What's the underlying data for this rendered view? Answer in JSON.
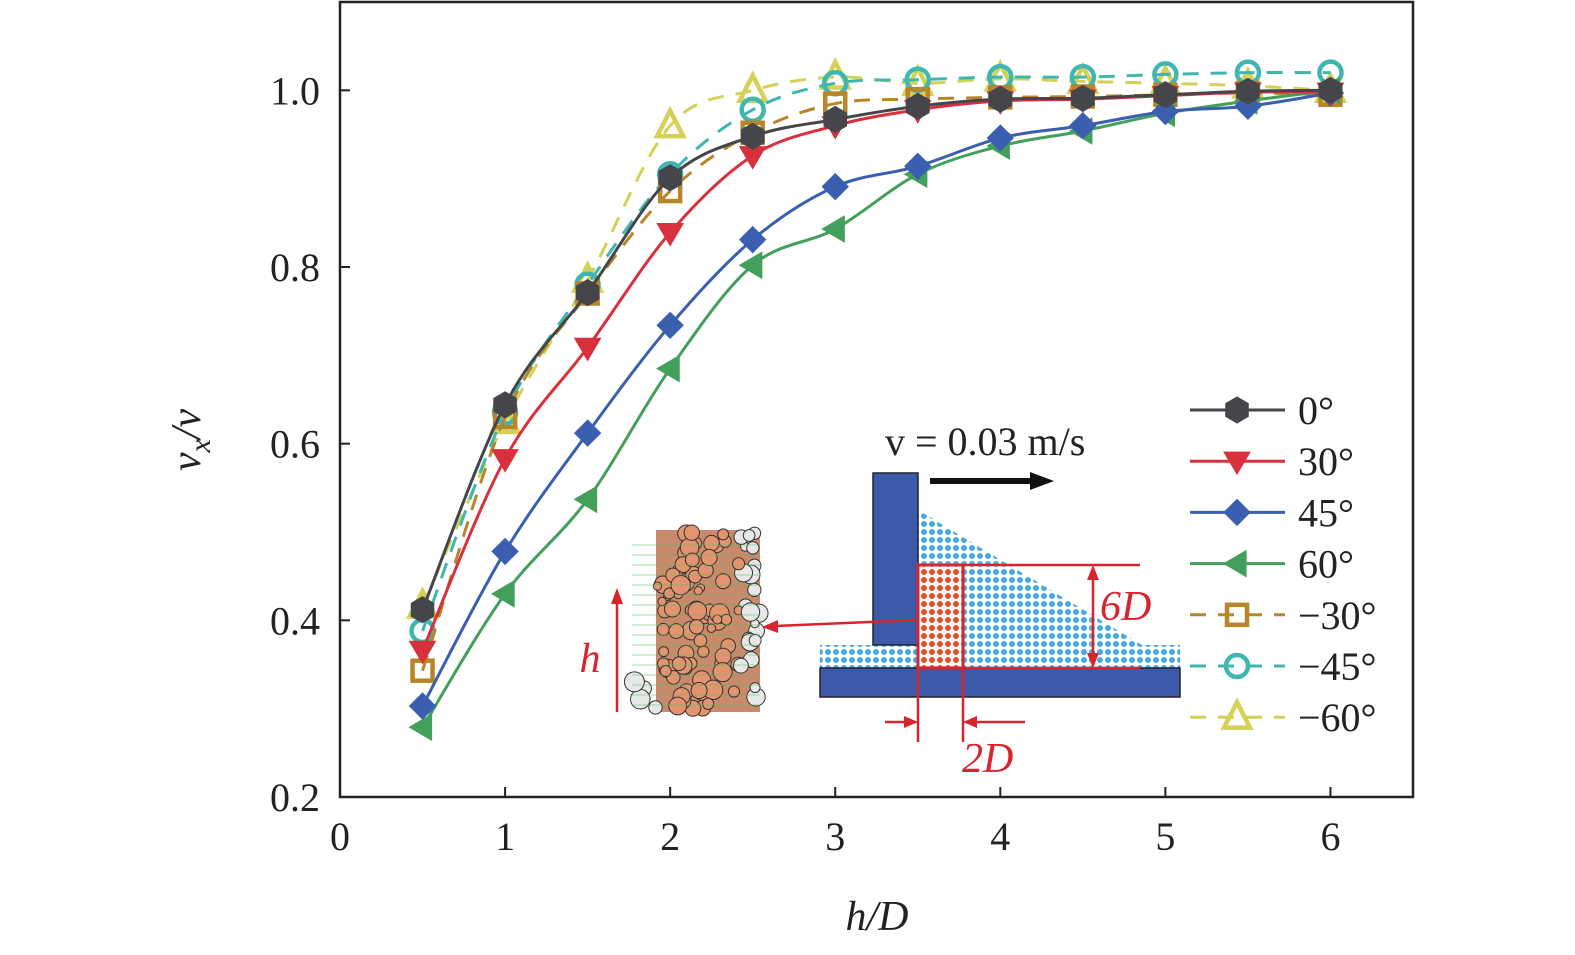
{
  "chart_data": {
    "type": "line",
    "xlabel": "h/D",
    "ylabel": "v_x/v",
    "ylabel_main": "v",
    "ylabel_sub": "x",
    "ylabel_tail": "/v",
    "xlim": [
      0,
      6.5
    ],
    "ylim": [
      0.2,
      1.1
    ],
    "xticks": [
      0,
      1,
      2,
      3,
      4,
      5,
      6
    ],
    "xtick_labels": [
      "0",
      "1",
      "2",
      "3",
      "4",
      "5",
      "6"
    ],
    "yticks": [
      0.2,
      0.4,
      0.6,
      0.8,
      1.0
    ],
    "ytick_labels": [
      "0.2",
      "0.4",
      "0.6",
      "0.8",
      "1.0"
    ],
    "grid": false,
    "legend_position": "right",
    "x": [
      0.5,
      1,
      1.5,
      2,
      2.5,
      3,
      3.5,
      4,
      4.5,
      5,
      5.5,
      6
    ],
    "series": [
      {
        "name": "0°",
        "color": "#45464b",
        "marker": "hexagon",
        "dashed": false,
        "values": [
          0.412,
          0.644,
          0.771,
          0.901,
          0.948,
          0.967,
          0.982,
          0.99,
          0.991,
          0.995,
          0.999,
          1.0
        ]
      },
      {
        "name": "30°",
        "color": "#d8303c",
        "marker": "triangle-down",
        "dashed": false,
        "values": [
          0.366,
          0.583,
          0.709,
          0.839,
          0.926,
          0.96,
          0.978,
          0.988,
          0.99,
          0.994,
          0.998,
          0.998
        ]
      },
      {
        "name": "45°",
        "color": "#3b5fb0",
        "marker": "diamond",
        "dashed": false,
        "values": [
          0.303,
          0.478,
          0.612,
          0.734,
          0.831,
          0.891,
          0.914,
          0.946,
          0.96,
          0.976,
          0.982,
          0.997
        ]
      },
      {
        "name": "60°",
        "color": "#42a05a",
        "marker": "triangle-left",
        "dashed": false,
        "values": [
          0.279,
          0.43,
          0.537,
          0.685,
          0.802,
          0.843,
          0.905,
          0.937,
          0.954,
          0.974,
          0.988,
          1.0
        ]
      },
      {
        "name": "−30°",
        "color": "#b8862a",
        "marker": "square-open",
        "dashed": true,
        "values": [
          0.343,
          0.63,
          0.77,
          0.886,
          0.952,
          0.985,
          0.99,
          0.992,
          0.993,
          0.995,
          0.997,
          0.995
        ]
      },
      {
        "name": "−45°",
        "color": "#3fb7b0",
        "marker": "circle-open",
        "dashed": true,
        "values": [
          0.388,
          0.635,
          0.78,
          0.905,
          0.978,
          1.008,
          1.012,
          1.015,
          1.015,
          1.018,
          1.02,
          1.02
        ]
      },
      {
        "name": "−60°",
        "color": "#d4d156",
        "marker": "triangle-open",
        "dashed": true,
        "values": [
          0.416,
          0.625,
          0.785,
          0.96,
          1.0,
          1.015,
          1.008,
          1.013,
          1.01,
          1.008,
          1.005,
          1.0
        ]
      }
    ],
    "inset": {
      "velocity_label": "v = 0.03 m/s",
      "height_label": "6D",
      "width_label": "2D",
      "h_label": "h",
      "wall_color": "#3d5aa8",
      "fill_color": "#4aa8e0",
      "sample_color": "#e0522a",
      "annotation_color": "#d8242c"
    }
  }
}
